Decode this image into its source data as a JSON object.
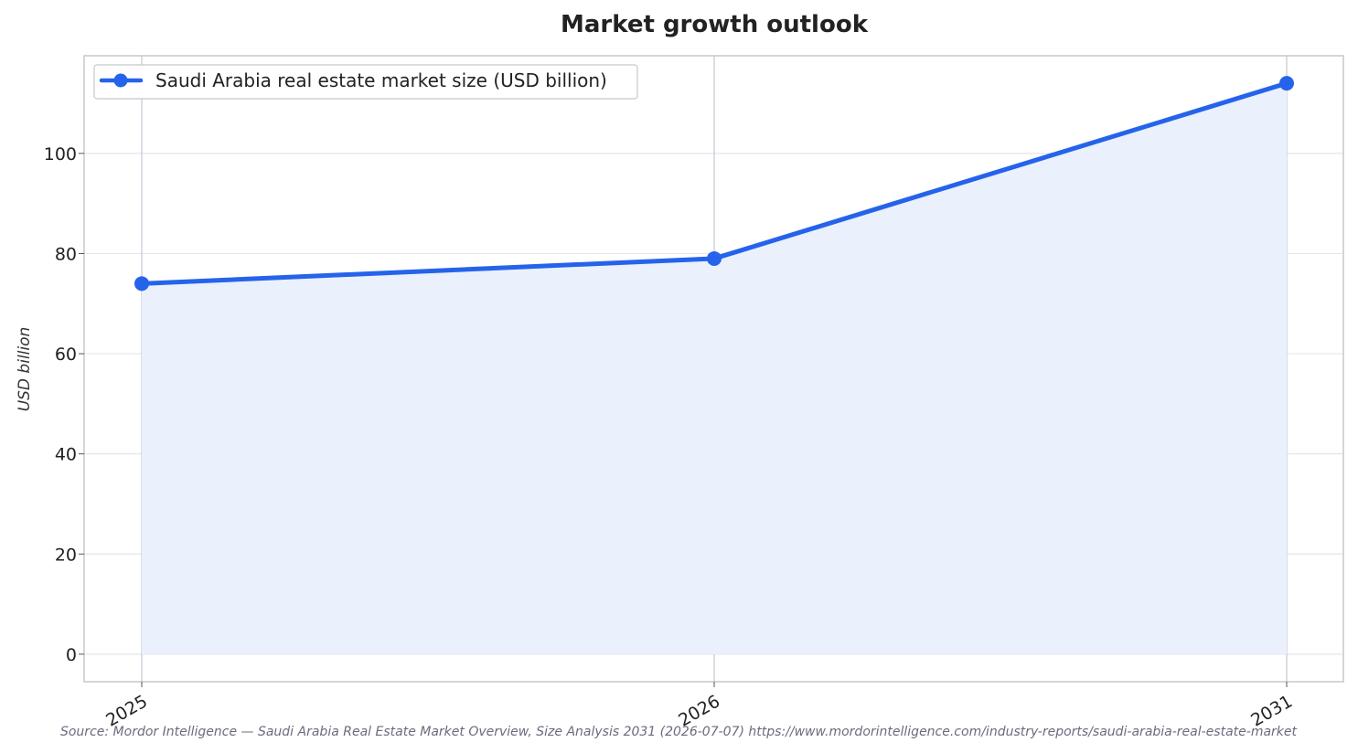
{
  "chart_data": {
    "type": "area",
    "title": "Market growth outlook",
    "xlabel": "",
    "ylabel": "USD billion",
    "categories": [
      "2025",
      "2026",
      "2031"
    ],
    "series": [
      {
        "name": "Saudi Arabia real estate market size (USD billion)",
        "values": [
          74,
          79,
          114
        ]
      }
    ],
    "ylim": [
      -5.5,
      119.5
    ],
    "yticks": [
      0,
      20,
      40,
      60,
      80,
      100
    ],
    "grid": true,
    "legend_position": "top-left",
    "colors": {
      "line": "#2563eb",
      "fill": "#eaf0fc",
      "grid": "#e6e6ea",
      "vgrid": "#c4c8d4",
      "frame": "#c8c8cc"
    },
    "source": "Source: Mordor Intelligence — Saudi Arabia Real Estate Market Overview, Size Analysis 2031 (2026-07-07) https://www.mordorintelligence.com/industry-reports/saudi-arabia-real-estate-market"
  }
}
